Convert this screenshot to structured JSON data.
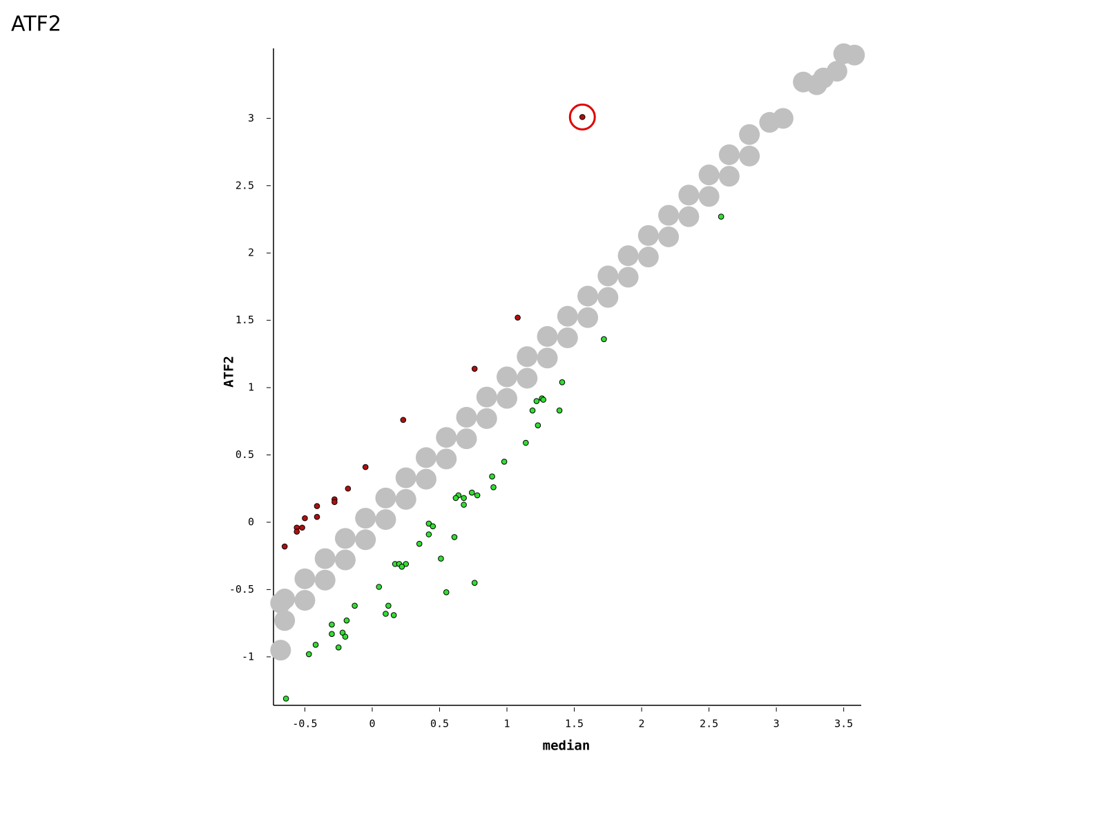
{
  "page_title": "ATF2",
  "chart_data": {
    "type": "scatter",
    "xlabel": "median",
    "ylabel": "ATF2",
    "xlim": [
      -0.733,
      3.63
    ],
    "ylim": [
      -1.36,
      3.52
    ],
    "xticks": [
      -0.5,
      0,
      0.5,
      1,
      1.5,
      2,
      2.5,
      3,
      3.5
    ],
    "yticks": [
      -1,
      -0.5,
      0,
      0.5,
      1,
      1.5,
      2,
      2.5,
      3
    ],
    "series": [
      {
        "color": "#c0c0c0",
        "x": [
          -0.65,
          -0.5,
          -0.35,
          -0.2,
          -0.05,
          0.1,
          0.25,
          0.4,
          0.55,
          0.7,
          0.85,
          1.0,
          1.15,
          1.3,
          1.45,
          1.6,
          1.75,
          1.9,
          2.05,
          2.2,
          2.35,
          2.5,
          2.65,
          2.8,
          -0.65,
          -0.5,
          -0.35,
          -0.2,
          -0.05,
          0.1,
          0.25,
          0.4,
          0.55,
          0.7,
          0.85,
          1.0,
          1.15,
          1.3,
          1.45,
          1.6,
          1.75,
          1.9,
          2.05,
          2.2,
          2.35,
          2.5,
          2.65,
          2.8,
          -0.68,
          -0.68,
          2.95,
          3.05,
          3.2,
          3.3,
          3.35,
          3.45,
          3.5,
          3.58
        ],
        "y": [
          -0.57,
          -0.42,
          -0.27,
          -0.12,
          0.03,
          0.18,
          0.33,
          0.48,
          0.63,
          0.78,
          0.93,
          1.08,
          1.23,
          1.38,
          1.53,
          1.68,
          1.83,
          1.98,
          2.13,
          2.28,
          2.43,
          2.58,
          2.73,
          2.88,
          -0.73,
          -0.58,
          -0.43,
          -0.28,
          -0.13,
          0.02,
          0.17,
          0.32,
          0.47,
          0.62,
          0.77,
          0.92,
          1.07,
          1.22,
          1.37,
          1.52,
          1.67,
          1.82,
          1.97,
          2.12,
          2.27,
          2.42,
          2.57,
          2.72,
          -0.95,
          -0.6,
          2.97,
          3.0,
          3.27,
          3.25,
          3.3,
          3.35,
          3.48,
          3.47
        ]
      },
      {
        "color": "#b01010",
        "x": [
          1.56,
          1.08,
          0.76,
          0.23,
          -0.05,
          -0.18,
          -0.28,
          -0.28,
          -0.41,
          -0.41,
          -0.5,
          -0.52,
          -0.56,
          -0.56,
          -0.65
        ],
        "y": [
          3.01,
          1.52,
          1.14,
          0.76,
          0.41,
          0.25,
          0.17,
          0.15,
          0.12,
          0.04,
          0.03,
          -0.04,
          -0.04,
          -0.07,
          -0.18
        ]
      },
      {
        "color": "#33dd33",
        "x": [
          2.59,
          1.72,
          1.41,
          1.22,
          1.26,
          1.27,
          1.39,
          1.19,
          1.23,
          1.14,
          0.98,
          0.89,
          0.9,
          0.74,
          0.78,
          0.64,
          0.62,
          0.68,
          0.68,
          0.42,
          0.45,
          0.42,
          0.61,
          0.35,
          0.51,
          0.17,
          0.2,
          0.25,
          0.22,
          0.76,
          0.05,
          0.55,
          -0.13,
          0.12,
          0.1,
          0.16,
          -0.19,
          -0.3,
          -0.3,
          -0.22,
          -0.2,
          -0.42,
          -0.25,
          -0.47,
          -0.64
        ],
        "y": [
          2.27,
          1.36,
          1.04,
          0.9,
          0.92,
          0.91,
          0.83,
          0.83,
          0.72,
          0.59,
          0.45,
          0.34,
          0.26,
          0.22,
          0.2,
          0.2,
          0.18,
          0.18,
          0.13,
          -0.01,
          -0.03,
          -0.09,
          -0.11,
          -0.16,
          -0.27,
          -0.31,
          -0.31,
          -0.31,
          -0.33,
          -0.45,
          -0.48,
          -0.52,
          -0.62,
          -0.62,
          -0.68,
          -0.69,
          -0.73,
          -0.76,
          -0.83,
          -0.82,
          -0.85,
          -0.91,
          -0.93,
          -0.98,
          -1.31
        ]
      }
    ]
  }
}
